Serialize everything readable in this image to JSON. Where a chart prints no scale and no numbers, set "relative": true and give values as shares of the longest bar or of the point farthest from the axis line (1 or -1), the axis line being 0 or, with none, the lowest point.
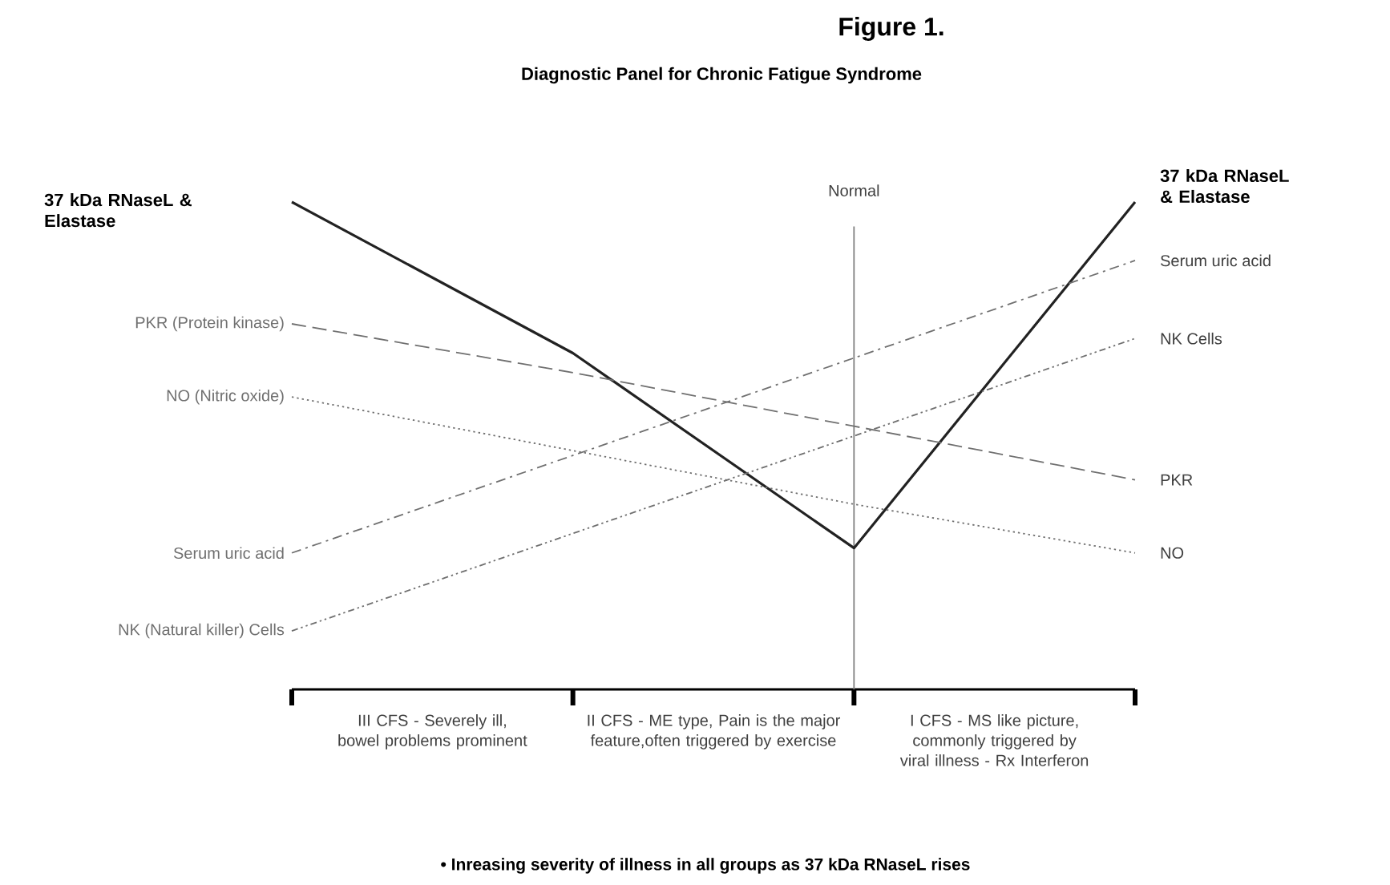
{
  "chart_data": {
    "type": "line",
    "title": "Figure 1.",
    "subtitle": "Diagnostic Panel for Chronic Fatigue Syndrome",
    "relative": true,
    "marker": "none",
    "categories": [
      null,
      null,
      null,
      null
    ],
    "series": [
      {
        "name": "37 kDa RNaseL & Elastase",
        "color": "#222222",
        "line_style": "solid",
        "values": [
          1.0,
          0.69,
          0.29,
          1.0
        ]
      },
      {
        "name": "PKR (Protein kinase)",
        "color": "#707070",
        "line_style": "dashed",
        "values": [
          0.75,
          0.65,
          0.54,
          0.43
        ]
      },
      {
        "name": "NO (Nitric oxide)",
        "color": "#707070",
        "line_style": "dotted",
        "values": [
          0.6,
          0.49,
          0.38,
          0.28
        ]
      },
      {
        "name": "Serum uric acid",
        "color": "#707070",
        "line_style": "dashdot",
        "values": [
          0.28,
          0.48,
          0.68,
          0.88
        ]
      },
      {
        "name": "NK (Natural killer) Cells",
        "color": "#707070",
        "line_style": "dashdotdot",
        "values": [
          0.12,
          0.32,
          0.52,
          0.72
        ]
      }
    ],
    "annotations": [
      "37 kDa RNaseL & Elastase",
      "PKR",
      "NO",
      "Serum uric acid",
      "NK Cells",
      "Normal",
      "III CFS - Severely ill, bowel problems prominent",
      "II CFS - ME type, Pain is the major feature,often triggered by exercise",
      "I CFS - MS like picture, commonly triggered by viral illness - Rx Interferon",
      "• Inreasing severity of illness in all groups as 37 kDa RNaseL rises"
    ]
  }
}
